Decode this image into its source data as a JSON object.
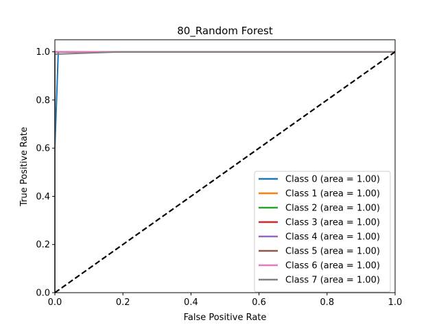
{
  "chart_data": {
    "type": "line",
    "title": "80_Random Forest",
    "xlabel": "False Positive Rate",
    "ylabel": "True Positive Rate",
    "xlim": [
      0.0,
      1.0
    ],
    "ylim": [
      0.0,
      1.05
    ],
    "x_ticks": [
      "0.0",
      "0.2",
      "0.4",
      "0.6",
      "0.8",
      "1.0"
    ],
    "y_ticks": [
      "0.0",
      "0.2",
      "0.4",
      "0.6",
      "0.8",
      "1.0"
    ],
    "legend_position": "lower-right",
    "grid": false,
    "diagonal": {
      "x": [
        0,
        1
      ],
      "y": [
        0,
        1
      ],
      "style": "dashed",
      "color": "#000000"
    },
    "series": [
      {
        "name": "Class 0 (area = 1.00)",
        "color": "#1f77b4",
        "x": [
          0,
          0.0,
          0.01,
          0.2,
          1.0
        ],
        "y": [
          0,
          0.6,
          1.0,
          1.0,
          1.0
        ]
      },
      {
        "name": "Class 1 (area = 1.00)",
        "color": "#ff7f0e",
        "x": [
          0,
          0.0,
          1.0
        ],
        "y": [
          0,
          1.0,
          1.0
        ]
      },
      {
        "name": "Class 2 (area = 1.00)",
        "color": "#2ca02c",
        "x": [
          0,
          0.0,
          1.0
        ],
        "y": [
          0,
          1.0,
          1.0
        ]
      },
      {
        "name": "Class 3 (area = 1.00)",
        "color": "#d62728",
        "x": [
          0,
          0.0,
          1.0
        ],
        "y": [
          0,
          1.0,
          1.0
        ]
      },
      {
        "name": "Class 4 (area = 1.00)",
        "color": "#9467bd",
        "x": [
          0,
          0.0,
          1.0
        ],
        "y": [
          0,
          1.0,
          1.0
        ]
      },
      {
        "name": "Class 5 (area = 1.00)",
        "color": "#8c564b",
        "x": [
          0,
          0.0,
          1.0
        ],
        "y": [
          0,
          1.0,
          1.0
        ]
      },
      {
        "name": "Class 6 (area = 1.00)",
        "color": "#e377c2",
        "x": [
          0,
          0.0,
          0.2,
          1.0
        ],
        "y": [
          0,
          1.0,
          1.0,
          1.0
        ]
      },
      {
        "name": "Class 7 (area = 1.00)",
        "color": "#7f7f7f",
        "x": [
          0,
          0.0,
          0.2,
          1.0
        ],
        "y": [
          0,
          0.99,
          1.0,
          1.0
        ]
      }
    ]
  }
}
